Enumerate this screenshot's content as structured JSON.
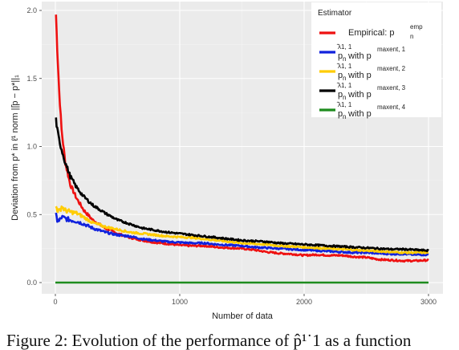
{
  "chart_data": {
    "type": "line",
    "title": "",
    "xlabel": "Number of data",
    "ylabel": "Deviation from p* in ℓ¹ norm ||̂p − p*||₁",
    "xlim": [
      0,
      3000
    ],
    "ylim": [
      0,
      2.0
    ],
    "x_ticks": [
      "0",
      "1000",
      "2000",
      "3000"
    ],
    "y_ticks": [
      "0.0",
      "0.5",
      "1.0",
      "1.5",
      "2.0"
    ],
    "grid": true,
    "legend": {
      "title": "Estimator",
      "placement": "top-right",
      "entries": [
        {
          "label": "Empirical: p",
          "sub": "n",
          "sup": "emp",
          "color": "#ee1111"
        },
        {
          "label": "with p",
          "hat": "p",
          "hat_sup": "λ1, 1",
          "sub": "n",
          "sup": "maxent, 1",
          "color": "#1122dd"
        },
        {
          "label": "with p",
          "hat": "p",
          "hat_sup": "λ1, 1",
          "sub": "n",
          "sup": "maxent, 2",
          "color": "#ffcc00"
        },
        {
          "label": "with p",
          "hat": "p",
          "hat_sup": "λ1, 1",
          "sub": "n",
          "sup": "maxent, 3",
          "color": "#000000"
        },
        {
          "label": "with p",
          "hat": "p",
          "hat_sup": "λ1, 1",
          "sub": "n",
          "sup": "maxent, 4",
          "color": "#1e8c1e"
        }
      ]
    },
    "series": [
      {
        "color": "#ee1111",
        "x": [
          5,
          15,
          30,
          50,
          80,
          120,
          170,
          230,
          300,
          400,
          500,
          600,
          700,
          800,
          900,
          1000,
          1100,
          1200,
          1300,
          1400,
          1500,
          1600,
          1700,
          1800,
          1900,
          2000,
          2100,
          2200,
          2300,
          2400,
          2500,
          2600,
          2700,
          2800,
          2900,
          3000
        ],
        "y": [
          1.97,
          1.72,
          1.42,
          1.12,
          0.88,
          0.72,
          0.62,
          0.53,
          0.46,
          0.4,
          0.36,
          0.33,
          0.31,
          0.295,
          0.285,
          0.275,
          0.27,
          0.27,
          0.26,
          0.255,
          0.25,
          0.24,
          0.225,
          0.215,
          0.21,
          0.2,
          0.205,
          0.2,
          0.2,
          0.19,
          0.185,
          0.17,
          0.165,
          0.16,
          0.16,
          0.165
        ]
      },
      {
        "color": "#1122dd",
        "x": [
          5,
          15,
          30,
          50,
          80,
          120,
          170,
          230,
          300,
          400,
          500,
          600,
          700,
          800,
          900,
          1000,
          1100,
          1200,
          1300,
          1400,
          1500,
          1600,
          1700,
          1800,
          1900,
          2000,
          2100,
          2200,
          2300,
          2400,
          2500,
          2600,
          2700,
          2800,
          2900,
          3000
        ],
        "y": [
          0.49,
          0.46,
          0.45,
          0.48,
          0.47,
          0.46,
          0.45,
          0.43,
          0.4,
          0.37,
          0.35,
          0.34,
          0.32,
          0.31,
          0.3,
          0.295,
          0.29,
          0.29,
          0.28,
          0.275,
          0.27,
          0.26,
          0.255,
          0.25,
          0.245,
          0.24,
          0.235,
          0.23,
          0.225,
          0.22,
          0.22,
          0.215,
          0.21,
          0.21,
          0.205,
          0.205
        ]
      },
      {
        "color": "#ffcc00",
        "x": [
          5,
          15,
          30,
          50,
          80,
          120,
          170,
          230,
          300,
          400,
          500,
          600,
          700,
          800,
          900,
          1000,
          1100,
          1200,
          1300,
          1400,
          1500,
          1600,
          1700,
          1800,
          1900,
          2000,
          2100,
          2200,
          2300,
          2400,
          2500,
          2600,
          2700,
          2800,
          2900,
          3000
        ],
        "y": [
          0.56,
          0.54,
          0.52,
          0.56,
          0.53,
          0.52,
          0.51,
          0.48,
          0.44,
          0.41,
          0.39,
          0.37,
          0.36,
          0.35,
          0.34,
          0.335,
          0.33,
          0.32,
          0.31,
          0.3,
          0.29,
          0.285,
          0.28,
          0.27,
          0.265,
          0.26,
          0.255,
          0.25,
          0.245,
          0.24,
          0.235,
          0.23,
          0.225,
          0.22,
          0.22,
          0.22
        ]
      },
      {
        "color": "#000000",
        "x": [
          5,
          15,
          30,
          50,
          80,
          120,
          170,
          230,
          300,
          400,
          500,
          600,
          700,
          800,
          900,
          1000,
          1100,
          1200,
          1300,
          1400,
          1500,
          1600,
          1700,
          1800,
          1900,
          2000,
          2100,
          2200,
          2300,
          2400,
          2500,
          2600,
          2700,
          2800,
          2900,
          3000
        ],
        "y": [
          1.2,
          1.12,
          1.05,
          0.98,
          0.88,
          0.78,
          0.7,
          0.63,
          0.57,
          0.51,
          0.46,
          0.43,
          0.4,
          0.385,
          0.37,
          0.36,
          0.35,
          0.34,
          0.33,
          0.32,
          0.31,
          0.305,
          0.3,
          0.29,
          0.285,
          0.28,
          0.275,
          0.27,
          0.265,
          0.26,
          0.255,
          0.25,
          0.245,
          0.245,
          0.24,
          0.235
        ]
      },
      {
        "color": "#1e8c1e",
        "x": [
          0,
          3000
        ],
        "y": [
          0.0,
          0.0
        ]
      }
    ]
  },
  "caption": "Figure 2: Evolution of the performance of p̂¹˙1 as a function"
}
